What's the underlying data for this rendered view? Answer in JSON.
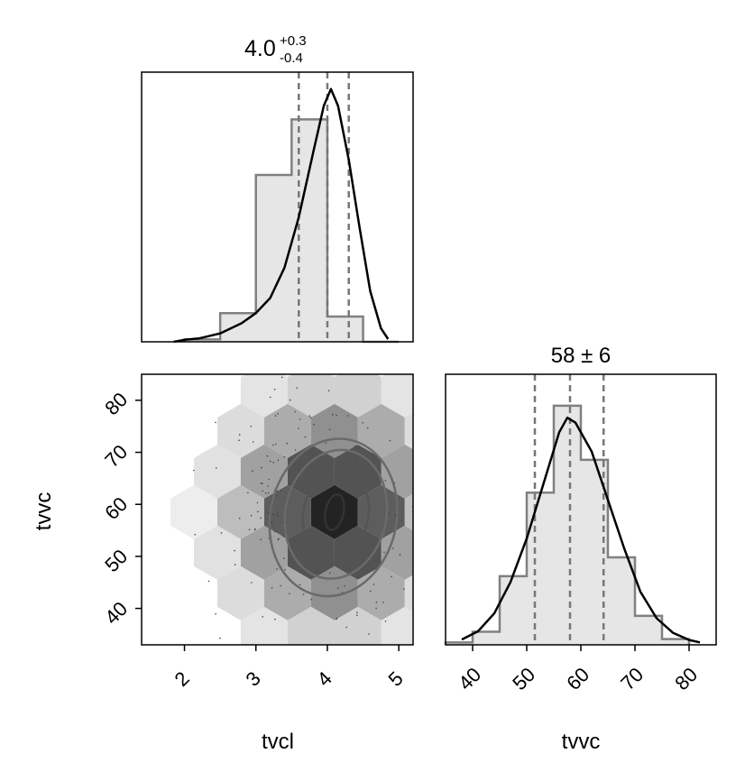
{
  "chart_data": [
    {
      "type": "histogram",
      "panel": "tvcl-marginal",
      "title_value": "4.0",
      "title_plus": "+0.3",
      "title_minus": "-0.4",
      "xlim": [
        1.4,
        5.2
      ],
      "bin_edges": [
        2.0,
        2.5,
        3.0,
        3.5,
        4.0,
        4.5,
        5.0
      ],
      "bin_values": [
        0.7,
        8.5,
        49.5,
        66.0,
        7.5,
        0
      ],
      "ylim": [
        0,
        80
      ],
      "quantiles": [
        3.6,
        4.0,
        4.3
      ],
      "density_curve": [
        [
          1.85,
          0.0
        ],
        [
          2.0,
          0.6
        ],
        [
          2.2,
          1.0
        ],
        [
          2.5,
          2.5
        ],
        [
          2.8,
          5.5
        ],
        [
          3.0,
          8.5
        ],
        [
          3.2,
          13
        ],
        [
          3.4,
          22
        ],
        [
          3.6,
          37
        ],
        [
          3.8,
          56
        ],
        [
          3.95,
          70
        ],
        [
          4.05,
          75
        ],
        [
          4.15,
          70
        ],
        [
          4.3,
          54
        ],
        [
          4.45,
          34
        ],
        [
          4.6,
          15
        ],
        [
          4.75,
          4
        ],
        [
          4.85,
          0.8
        ]
      ]
    },
    {
      "type": "histogram",
      "panel": "tvvc-marginal",
      "title": "58 ± 6",
      "xlabel": "tvvc",
      "xlim": [
        35,
        85
      ],
      "xticks": [
        40,
        50,
        60,
        70,
        80
      ],
      "bin_edges": [
        35,
        40,
        45,
        50,
        55,
        60,
        65,
        70,
        75,
        80
      ],
      "bin_values": [
        0.5,
        2.7,
        14.2,
        31.5,
        49.5,
        38.3,
        18.1,
        6.0,
        1.2
      ],
      "ylim": [
        0,
        56
      ],
      "quantiles": [
        51.5,
        58,
        64.2
      ],
      "density_curve": [
        [
          38,
          1.1
        ],
        [
          41,
          2.8
        ],
        [
          44,
          6.5
        ],
        [
          47,
          13
        ],
        [
          50,
          22
        ],
        [
          53,
          33
        ],
        [
          56,
          44
        ],
        [
          57.5,
          47
        ],
        [
          59,
          46
        ],
        [
          62,
          40
        ],
        [
          65,
          30
        ],
        [
          68,
          20
        ],
        [
          71,
          11
        ],
        [
          74,
          5.5
        ],
        [
          77,
          2.5
        ],
        [
          80,
          1.0
        ],
        [
          82,
          0.5
        ]
      ]
    },
    {
      "type": "hexbin-contour",
      "panel": "joint",
      "xlabel": "tvcl",
      "ylabel": "tvvc",
      "xlim": [
        1.4,
        5.2
      ],
      "ylim": [
        33,
        85
      ],
      "xticks": [
        2,
        3,
        4,
        5
      ],
      "yticks": [
        40,
        50,
        60,
        70,
        80
      ],
      "center": [
        4.1,
        58.5
      ]
    }
  ],
  "labels": {
    "tick_2": "2",
    "tick_3": "3",
    "tick_4": "4",
    "tick_5": "5",
    "tick_40": "40",
    "tick_50": "50",
    "tick_60": "60",
    "tick_70": "70",
    "tick_80": "80"
  },
  "colors": {
    "hist_fill": "#e6e6e6",
    "hist_edge": "#808080",
    "curve": "#000000",
    "quantile": "#777777"
  }
}
